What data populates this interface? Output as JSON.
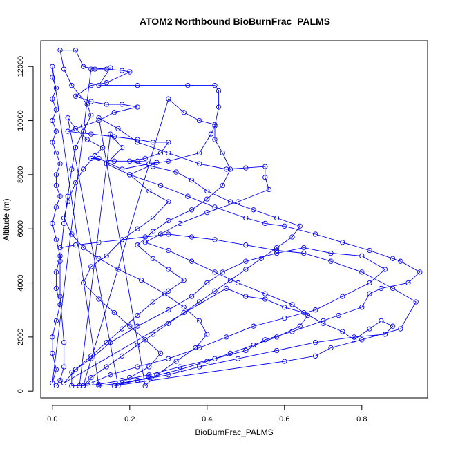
{
  "chart_data": {
    "type": "line",
    "title": "ATOM2 Northbound BioBurnFrac_PALMS",
    "xlabel": "BioBurnFrac_PALMS",
    "ylabel": "Altitude (m)",
    "xlim": [
      -0.03,
      0.97
    ],
    "ylim": [
      -250,
      12950
    ],
    "xticks": [
      0.0,
      0.2,
      0.4,
      0.6,
      0.8
    ],
    "xtick_labels": [
      "0.0",
      "0.2",
      "0.4",
      "0.6",
      "0.8"
    ],
    "yticks": [
      0,
      2000,
      4000,
      6000,
      8000,
      10000,
      12000
    ],
    "ytick_labels": [
      "0",
      "2000",
      "4000",
      "6000",
      "8000",
      "10000",
      "12000"
    ],
    "marker": "open-circle",
    "grid": false,
    "series": [
      {
        "color": "#0000ff",
        "points": [
          [
            0.01,
            200
          ],
          [
            0.02,
            400
          ],
          [
            0.03,
            900
          ],
          [
            0.03,
            1800
          ],
          [
            0.02,
            3500
          ],
          [
            0.02,
            4800
          ],
          [
            0.03,
            6200
          ],
          [
            0.04,
            7200
          ],
          [
            0.05,
            8200
          ],
          [
            0.06,
            9000
          ],
          [
            0.08,
            9600
          ],
          [
            0.1,
            10200
          ],
          [
            0.09,
            10600
          ],
          [
            0.05,
            11300
          ],
          [
            0.03,
            11900
          ],
          [
            0.02,
            12600
          ],
          [
            0.06,
            12600
          ],
          [
            0.08,
            12000
          ],
          [
            0.11,
            11900
          ],
          [
            0.15,
            11950
          ],
          [
            0.12,
            11300
          ],
          [
            0.22,
            11300
          ],
          [
            0.35,
            11300
          ],
          [
            0.42,
            11300
          ],
          [
            0.43,
            11100
          ],
          [
            0.43,
            10500
          ],
          [
            0.42,
            9800
          ],
          [
            0.41,
            9500
          ],
          [
            0.38,
            8800
          ],
          [
            0.3,
            8500
          ],
          [
            0.25,
            8400
          ],
          [
            0.18,
            8200
          ],
          [
            0.12,
            8600
          ],
          [
            0.1,
            8600
          ],
          [
            0.16,
            8500
          ],
          [
            0.22,
            8500
          ],
          [
            0.27,
            8450
          ],
          [
            0.2,
            8000
          ],
          [
            0.28,
            7600
          ],
          [
            0.35,
            7200
          ],
          [
            0.42,
            6800
          ],
          [
            0.5,
            6400
          ],
          [
            0.55,
            6200
          ],
          [
            0.6,
            6100
          ],
          [
            0.68,
            5800
          ],
          [
            0.75,
            5500
          ],
          [
            0.82,
            5200
          ],
          [
            0.88,
            4900
          ],
          [
            0.9,
            4800
          ],
          [
            0.95,
            4400
          ],
          [
            0.92,
            4000
          ],
          [
            0.85,
            3800
          ],
          [
            0.82,
            3600
          ],
          [
            0.8,
            3100
          ],
          [
            0.74,
            2800
          ],
          [
            0.7,
            2600
          ],
          [
            0.62,
            2200
          ],
          [
            0.55,
            1900
          ],
          [
            0.5,
            1500
          ],
          [
            0.42,
            1200
          ],
          [
            0.33,
            900
          ],
          [
            0.25,
            600
          ],
          [
            0.18,
            400
          ],
          [
            0.12,
            250
          ],
          [
            0.08,
            200
          ],
          [
            0.05,
            200
          ],
          [
            0.05,
            700
          ],
          [
            0.1,
            1200
          ],
          [
            0.15,
            1800
          ],
          [
            0.22,
            2400
          ],
          [
            0.3,
            3000
          ],
          [
            0.36,
            3500
          ],
          [
            0.4,
            4000
          ],
          [
            0.44,
            4400
          ],
          [
            0.5,
            4800
          ],
          [
            0.58,
            5100
          ],
          [
            0.65,
            5300
          ],
          [
            0.72,
            5100
          ],
          [
            0.8,
            5000
          ],
          [
            0.86,
            4500
          ],
          [
            0.82,
            4000
          ],
          [
            0.75,
            3500
          ],
          [
            0.68,
            3000
          ],
          [
            0.6,
            2700
          ],
          [
            0.52,
            2400
          ],
          [
            0.45,
            2000
          ],
          [
            0.38,
            1600
          ],
          [
            0.3,
            1200
          ],
          [
            0.22,
            900
          ],
          [
            0.15,
            600
          ],
          [
            0.1,
            300
          ],
          [
            0.07,
            200
          ],
          [
            0.15,
            9500
          ],
          [
            0.18,
            9000
          ],
          [
            0.14,
            8400
          ],
          [
            0.2,
            8000
          ],
          [
            0.25,
            7400
          ],
          [
            0.3,
            7000
          ],
          [
            0.26,
            6400
          ],
          [
            0.22,
            6000
          ],
          [
            0.18,
            5600
          ],
          [
            0.14,
            5000
          ],
          [
            0.1,
            4600
          ],
          [
            0.08,
            4000
          ],
          [
            0.12,
            3400
          ],
          [
            0.16,
            2900
          ],
          [
            0.2,
            2400
          ],
          [
            0.24,
            1900
          ],
          [
            0.28,
            1400
          ],
          [
            0.25,
            900
          ],
          [
            0.2,
            500
          ],
          [
            0.17,
            200
          ],
          [
            0.04,
            10100
          ],
          [
            0.06,
            9700
          ],
          [
            0.09,
            9300
          ],
          [
            0.13,
            9000
          ],
          [
            0.11,
            8700
          ],
          [
            0.08,
            8200
          ],
          [
            0.06,
            7700
          ],
          [
            0.04,
            7000
          ],
          [
            0.03,
            6400
          ],
          [
            0.05,
            5800
          ],
          [
            0.08,
            5300
          ],
          [
            0.12,
            4900
          ],
          [
            0.17,
            4500
          ],
          [
            0.23,
            4100
          ],
          [
            0.29,
            3600
          ],
          [
            0.34,
            3100
          ],
          [
            0.38,
            2600
          ],
          [
            0.4,
            2100
          ],
          [
            0.37,
            1600
          ],
          [
            0.32,
            1100
          ],
          [
            0.27,
            600
          ],
          [
            0.24,
            200
          ],
          [
            0.12,
            10100
          ],
          [
            0.17,
            9700
          ],
          [
            0.22,
            9200
          ],
          [
            0.3,
            8800
          ],
          [
            0.38,
            8400
          ],
          [
            0.45,
            8200
          ],
          [
            0.5,
            8250
          ],
          [
            0.55,
            8300
          ],
          [
            0.55,
            7900
          ],
          [
            0.56,
            7450
          ],
          [
            0.48,
            7000
          ],
          [
            0.4,
            6600
          ],
          [
            0.33,
            6200
          ],
          [
            0.28,
            5800
          ],
          [
            0.24,
            5500
          ],
          [
            0.3,
            5200
          ],
          [
            0.36,
            4800
          ],
          [
            0.42,
            4400
          ],
          [
            0.48,
            4000
          ],
          [
            0.55,
            3600
          ],
          [
            0.62,
            3200
          ],
          [
            0.66,
            2800
          ],
          [
            0.64,
            2400
          ],
          [
            0.58,
            2000
          ],
          [
            0.52,
            1700
          ],
          [
            0.46,
            1400
          ],
          [
            0.4,
            1100
          ],
          [
            0.33,
            800
          ],
          [
            0.25,
            500
          ],
          [
            0.18,
            300
          ],
          [
            0.12,
            200
          ],
          [
            0.0,
            12000
          ],
          [
            0.0,
            11600
          ],
          [
            0.01,
            11200
          ],
          [
            0.0,
            10800
          ],
          [
            0.01,
            10400
          ],
          [
            0.0,
            10000
          ],
          [
            0.01,
            9600
          ],
          [
            0.0,
            9200
          ],
          [
            0.01,
            8800
          ],
          [
            0.02,
            8400
          ],
          [
            0.01,
            8000
          ],
          [
            0.01,
            7600
          ],
          [
            0.02,
            7200
          ],
          [
            0.01,
            6800
          ],
          [
            0.0,
            6200
          ],
          [
            0.01,
            5600
          ],
          [
            0.02,
            5000
          ],
          [
            0.01,
            4400
          ],
          [
            0.01,
            3800
          ],
          [
            0.02,
            3200
          ],
          [
            0.01,
            2600
          ],
          [
            0.0,
            2000
          ],
          [
            0.0,
            1400
          ],
          [
            0.01,
            800
          ],
          [
            0.0,
            300
          ],
          [
            0.1,
            11900
          ],
          [
            0.14,
            11900
          ],
          [
            0.18,
            11850
          ],
          [
            0.2,
            11800
          ],
          [
            0.14,
            11400
          ],
          [
            0.1,
            11300
          ],
          [
            0.06,
            10900
          ],
          [
            0.1,
            10700
          ],
          [
            0.14,
            10600
          ],
          [
            0.18,
            10600
          ],
          [
            0.22,
            10500
          ],
          [
            0.16,
            10300
          ],
          [
            0.12,
            10000
          ],
          [
            0.08,
            9800
          ],
          [
            0.04,
            9600
          ],
          [
            0.1,
            9500
          ],
          [
            0.16,
            9400
          ],
          [
            0.22,
            9300
          ],
          [
            0.26,
            9200
          ],
          [
            0.3,
            9200
          ],
          [
            0.28,
            8800
          ],
          [
            0.24,
            8600
          ],
          [
            0.2,
            8500
          ],
          [
            0.26,
            8300
          ],
          [
            0.32,
            8100
          ],
          [
            0.36,
            7800
          ],
          [
            0.4,
            7400
          ],
          [
            0.46,
            7000
          ],
          [
            0.52,
            6700
          ],
          [
            0.58,
            6400
          ],
          [
            0.64,
            6100
          ],
          [
            0.62,
            5700
          ],
          [
            0.58,
            5300
          ],
          [
            0.54,
            4900
          ],
          [
            0.5,
            4500
          ],
          [
            0.46,
            4100
          ],
          [
            0.42,
            3700
          ],
          [
            0.38,
            3300
          ],
          [
            0.34,
            2900
          ],
          [
            0.3,
            2500
          ],
          [
            0.26,
            2100
          ],
          [
            0.22,
            1700
          ],
          [
            0.18,
            1300
          ],
          [
            0.14,
            900
          ],
          [
            0.1,
            500
          ],
          [
            0.08,
            200
          ],
          [
            0.3,
            10800
          ],
          [
            0.34,
            10300
          ],
          [
            0.38,
            10000
          ],
          [
            0.42,
            9850
          ],
          [
            0.42,
            9300
          ],
          [
            0.44,
            8800
          ],
          [
            0.46,
            8200
          ],
          [
            0.44,
            7600
          ],
          [
            0.4,
            7100
          ],
          [
            0.36,
            6700
          ],
          [
            0.3,
            6300
          ],
          [
            0.26,
            5900
          ],
          [
            0.22,
            5400
          ],
          [
            0.26,
            4900
          ],
          [
            0.3,
            4500
          ],
          [
            0.34,
            4100
          ],
          [
            0.3,
            3700
          ],
          [
            0.26,
            3300
          ],
          [
            0.22,
            2800
          ],
          [
            0.18,
            2300
          ],
          [
            0.14,
            1800
          ],
          [
            0.1,
            1300
          ],
          [
            0.06,
            800
          ],
          [
            0.03,
            300
          ],
          [
            0.45,
            3800
          ],
          [
            0.5,
            3500
          ],
          [
            0.55,
            3400
          ],
          [
            0.6,
            3100
          ],
          [
            0.65,
            2900
          ],
          [
            0.7,
            2500
          ],
          [
            0.75,
            2200
          ],
          [
            0.78,
            1900
          ],
          [
            0.82,
            2300
          ],
          [
            0.85,
            2600
          ],
          [
            0.88,
            2400
          ],
          [
            0.86,
            2100
          ],
          [
            0.78,
            2000
          ],
          [
            0.68,
            1800
          ],
          [
            0.58,
            1500
          ],
          [
            0.48,
            1200
          ],
          [
            0.38,
            900
          ],
          [
            0.3,
            600
          ],
          [
            0.22,
            400
          ],
          [
            0.16,
            200
          ],
          [
            0.6,
            1100
          ],
          [
            0.68,
            1300
          ],
          [
            0.72,
            1600
          ],
          [
            0.8,
            1900
          ],
          [
            0.9,
            2300
          ],
          [
            0.94,
            3300
          ],
          [
            0.88,
            3800
          ],
          [
            0.8,
            4400
          ],
          [
            0.72,
            4800
          ],
          [
            0.65,
            5100
          ],
          [
            0.58,
            5200
          ],
          [
            0.5,
            5400
          ],
          [
            0.42,
            5600
          ],
          [
            0.36,
            5700
          ],
          [
            0.3,
            5800
          ],
          [
            0.24,
            5700
          ],
          [
            0.18,
            5600
          ],
          [
            0.12,
            5500
          ],
          [
            0.06,
            5400
          ],
          [
            0.02,
            5300
          ]
        ]
      }
    ]
  }
}
